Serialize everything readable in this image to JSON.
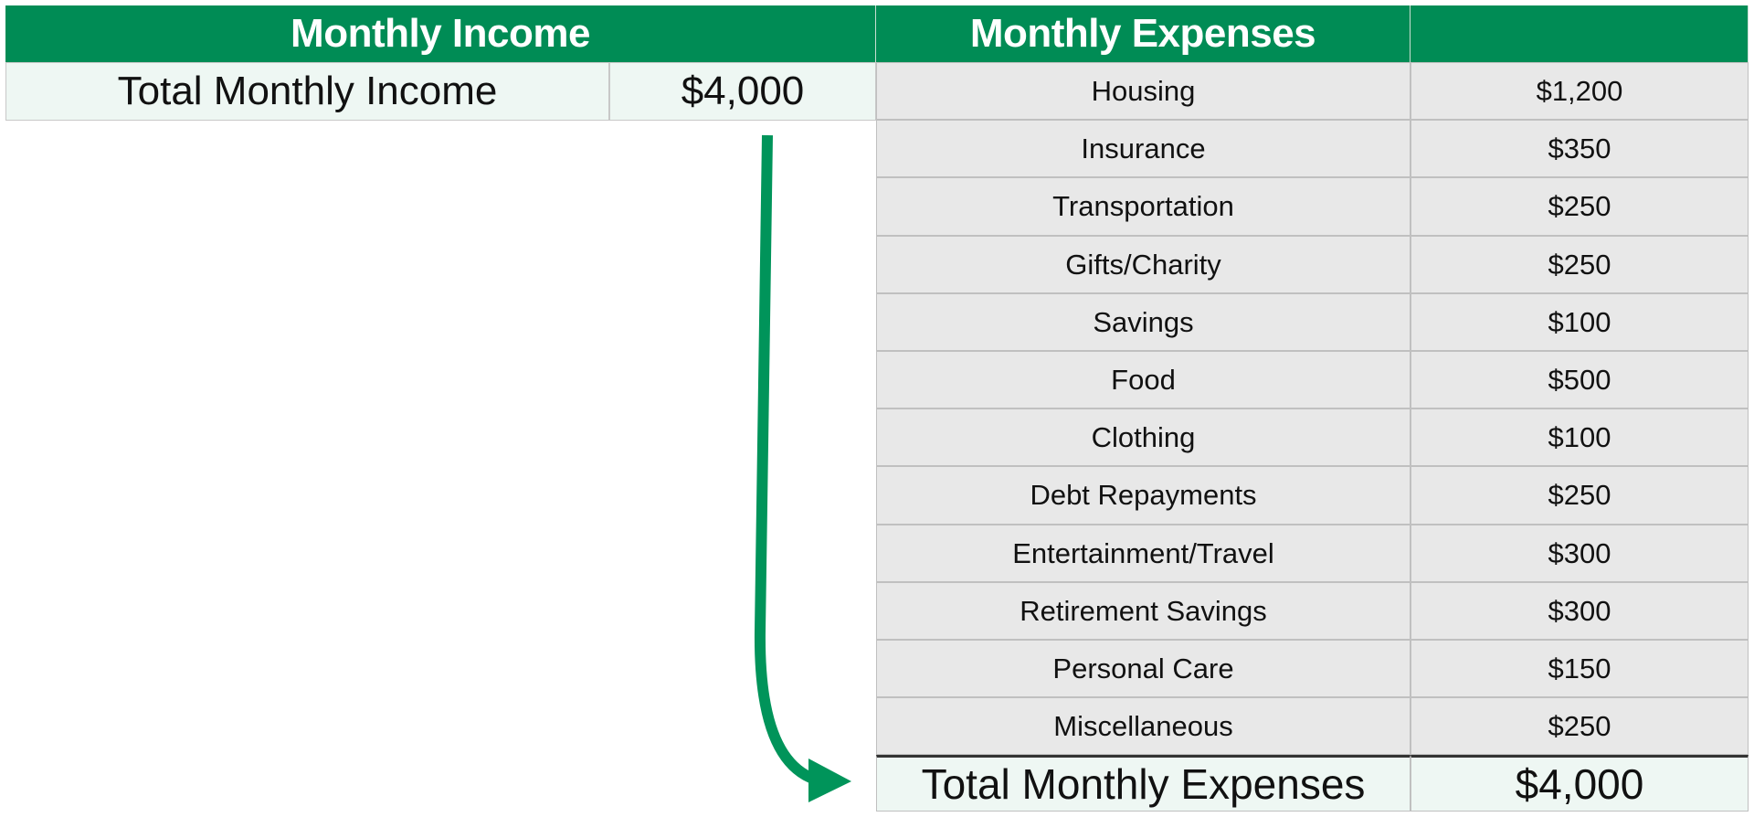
{
  "income": {
    "title": "Monthly Income",
    "total_label": "Total Monthly Income",
    "total_value": "$4,000"
  },
  "expenses": {
    "title": "Monthly Expenses",
    "rows": [
      {
        "label": "Housing",
        "value": "$1,200"
      },
      {
        "label": "Insurance",
        "value": "$350"
      },
      {
        "label": "Transportation",
        "value": "$250"
      },
      {
        "label": "Gifts/Charity",
        "value": "$250"
      },
      {
        "label": "Savings",
        "value": "$100"
      },
      {
        "label": "Food",
        "value": "$500"
      },
      {
        "label": "Clothing",
        "value": "$100"
      },
      {
        "label": "Debt Repayments",
        "value": "$250"
      },
      {
        "label": "Entertainment/Travel",
        "value": "$300"
      },
      {
        "label": "Retirement Savings",
        "value": "$300"
      },
      {
        "label": "Personal Care",
        "value": "$150"
      },
      {
        "label": "Miscellaneous",
        "value": "$250"
      }
    ],
    "total_label": "Total Monthly Expenses",
    "total_value": "$4,000"
  },
  "colors": {
    "header_green": "#008c55",
    "arrow_green": "#00945a",
    "total_fill": "#eef7f3",
    "row_fill": "#e8e8e8"
  }
}
